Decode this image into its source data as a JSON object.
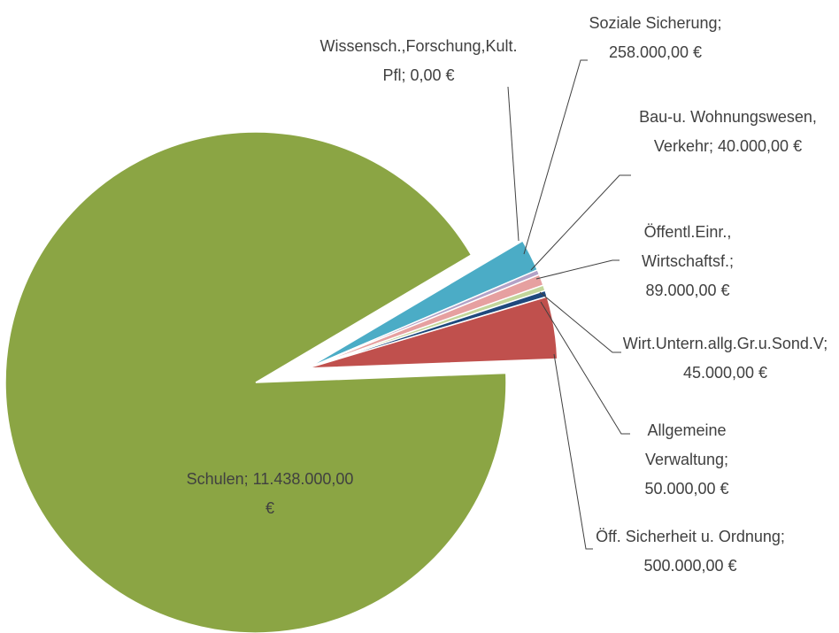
{
  "chart_data": {
    "type": "pie",
    "categories": [
      "Wissensch.,Forschung,Kult.Pfl",
      "Soziale Sicherung",
      "Bau-u. Wohnungswesen, Verkehr",
      "Öffentl.Einr., Wirtschaftsf.",
      "Wirt.Untern.allg.Gr.u.Sond.V",
      "Allgemeine Verwaltung",
      "Öff. Sicherheit u. Ordnung",
      "Schulen"
    ],
    "values": [
      0,
      258000,
      40000,
      89000,
      45000,
      50000,
      500000,
      11438000
    ],
    "value_labels": [
      "0,00 €",
      "258.000,00 €",
      "40.000,00 €",
      "89.000,00 €",
      "45.000,00 €",
      "50.000,00 €",
      "500.000,00 €",
      "11.438.000,00 €"
    ],
    "label_separator": "; ",
    "colors": [
      "#8064a2",
      "#4bacc6",
      "#b3a2c7",
      "#e6a0a0",
      "#c3d69b",
      "#1f497d",
      "#c0504d",
      "#8ba544"
    ]
  }
}
